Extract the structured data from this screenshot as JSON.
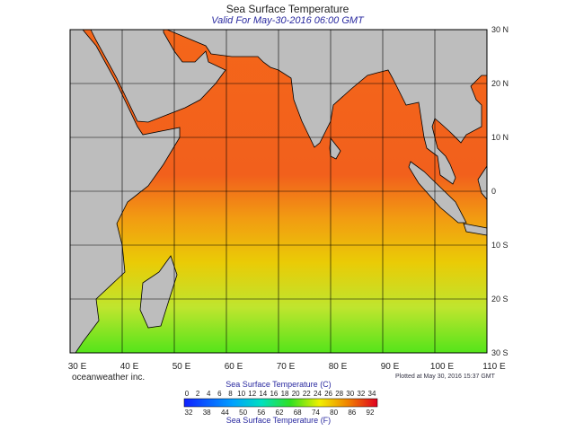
{
  "header": {
    "title": "Sea Surface Temperature",
    "subtitle": "Valid For May-30-2016 06:00 GMT"
  },
  "map": {
    "lat_labels": [
      "30 N",
      "20 N",
      "10 N",
      "0",
      "10 S",
      "20 S",
      "30 S"
    ],
    "lon_labels": [
      "30 E",
      "40 E",
      "50 E",
      "60 E",
      "70 E",
      "80 E",
      "90 E",
      "100 E",
      "110 E"
    ]
  },
  "footer": {
    "credit": "oceanweather inc.",
    "plotted": "Plotted at May 30, 2016 15:37 GMT"
  },
  "colorbar": {
    "title_c": "Sea Surface Temperature (C)",
    "labels_c": [
      0,
      2,
      4,
      6,
      8,
      10,
      12,
      14,
      16,
      18,
      20,
      22,
      24,
      26,
      28,
      30,
      32,
      34
    ],
    "labels_f": [
      32,
      38,
      44,
      50,
      56,
      62,
      68,
      74,
      80,
      86,
      92
    ],
    "title_f": "Sea Surface Temperature (F)"
  }
}
